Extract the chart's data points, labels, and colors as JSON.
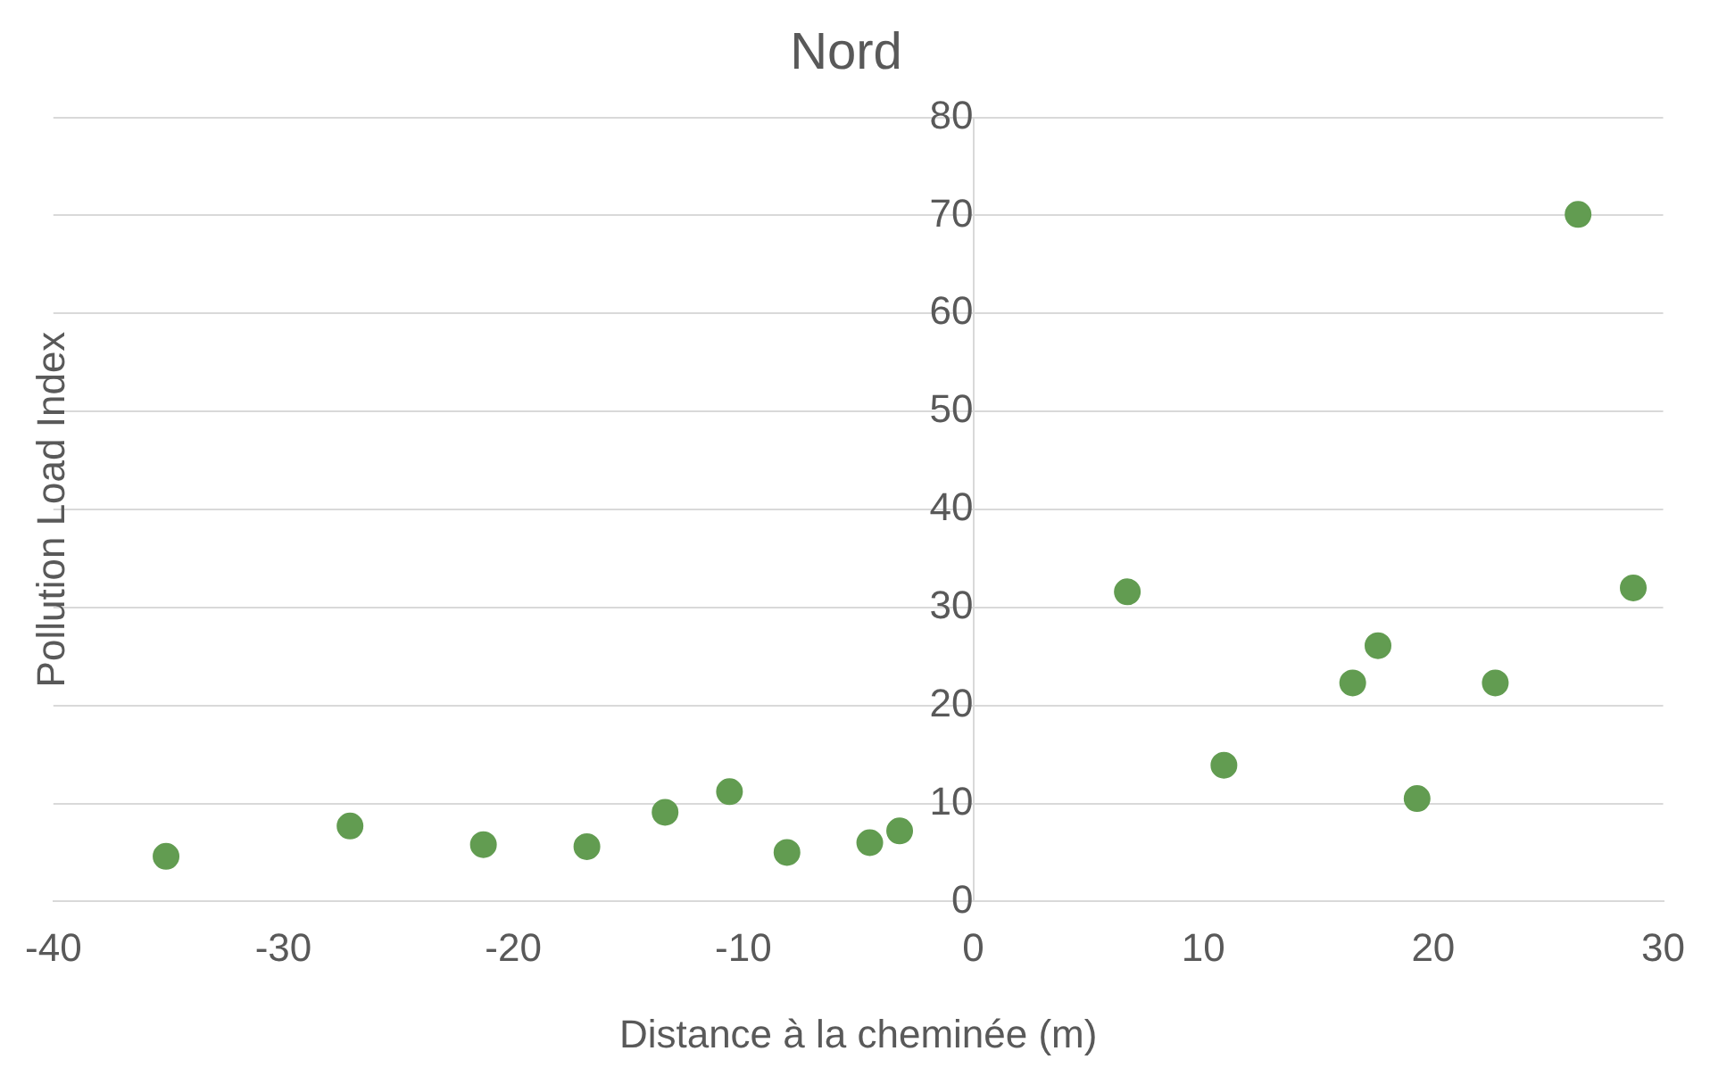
{
  "chart_data": {
    "type": "scatter",
    "title": "Nord",
    "xlabel": "Distance à la cheminée (m)",
    "ylabel": "Pollution Load Index",
    "x": [
      -35.1,
      -27.1,
      -21.3,
      -16.8,
      -13.4,
      -10.6,
      -8.1,
      -4.5,
      -3.2,
      6.7,
      10.9,
      16.5,
      17.6,
      19.3,
      22.7,
      26.3,
      28.7
    ],
    "series": [
      {
        "color": "#629c51",
        "values": [
          4.6,
          7.7,
          5.8,
          5.6,
          9.1,
          11.2,
          5.0,
          6.0,
          7.2,
          31.6,
          13.9,
          22.3,
          26.1,
          10.5,
          22.3,
          70.1,
          32.0
        ]
      }
    ],
    "xlim": [
      -40,
      30
    ],
    "xticks": [
      -40,
      -30,
      -20,
      -10,
      0,
      10,
      20,
      30
    ],
    "ylim": [
      0,
      80
    ],
    "yticks": [
      0,
      10,
      20,
      30,
      40,
      50,
      60,
      70,
      80
    ],
    "grid": "y",
    "legend": false,
    "marker": "circle"
  }
}
